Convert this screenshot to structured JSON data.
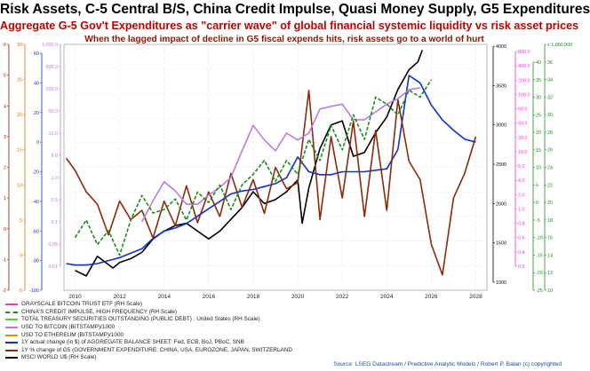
{
  "title": "Risk Assets, C-5 Central B/S, China Credit Impulse, Quasi Money Supply, G5 Expenditures",
  "subtitle1": "Aggregate G-5 Gov't Expenditures as \"carrier wave\" of global financial systemic liquidity vs risk asset prices",
  "subtitle2": "When the lagged impact of decline in G5 fiscal expends hits, risk assets go to a world of hurt",
  "source": "Source: LSEG Datastream / Predictive Analytic Models / Robert P. Balan (c) copyrighted",
  "legend": [
    {
      "label": "GRAYSCALE BITCOIN TRUST ETF (RH Scale)",
      "color": "#ff33cc",
      "dash": false
    },
    {
      "label": "CHINA'S CREDIT IMPULSE, HIGH FREQUENCY (RH Scale)",
      "color": "#1c8a1c",
      "dash": true
    },
    {
      "label": "TOTAL TREASURY SECURITIES OUTSTANDING (PUBLIC DEBT) : United States (RH Scale)",
      "color": "#55cc33",
      "dash": false
    },
    {
      "label": "USD TO BITCOIN (BITSTAMP)/1000",
      "color": "#b57edc",
      "dash": false
    },
    {
      "label": "USD TO ETHEREUM (BITSTAMP)/1000",
      "color": "#e08a1e",
      "dash": false
    },
    {
      "label": "1Y actual change (in $) of AGGREGATE BALANCE SHEET: Fed, ECB, BoJ, PBoC, SNB",
      "color": "#1030d0",
      "dash": false
    },
    {
      "label": "1Y % change of G5 (GOVERNMENT EXPENDITURE: CHINA, USA, EUROZONE, JAPAN, SWITZERLAND",
      "color": "#8b2a0a",
      "dash": false
    },
    {
      "label": "MSCI WORLD U$ (RH Scale)",
      "color": "#000000",
      "dash": false
    }
  ],
  "chart_data": {
    "type": "line",
    "x_ticks": [
      "2010",
      "2012",
      "2014",
      "2016",
      "2018",
      "2020",
      "2022",
      "2024",
      "2026",
      "2028"
    ],
    "xlim": [
      2009.5,
      2028.5
    ],
    "axes": {
      "left1": {
        "color": "#8b1a00",
        "ticks": [
          "6",
          "5",
          "4",
          "3",
          "2",
          "1",
          "0",
          "-1",
          "-2"
        ]
      },
      "left2": {
        "color": "#e07000",
        "ticks": [
          "30",
          "25",
          "20",
          "15",
          "10",
          "5",
          "0",
          "-5"
        ]
      },
      "left3": {
        "color": "#1030d0",
        "ticks": [
          "60",
          "40",
          "20",
          "0",
          "-20",
          "-40",
          "-60",
          "-80",
          "-100"
        ]
      },
      "left4": {
        "color": "#b57edc",
        "ticks": [
          "1,000.0",
          "500.0",
          "100.0",
          "50.0",
          "10.0",
          "5.0",
          "1.0",
          "0.5",
          "0.1",
          "0.05",
          "0.01"
        ]
      },
      "right1": {
        "color": "#000000",
        "ticks": [
          "4000",
          "3500",
          "3000",
          "2500",
          "2000",
          "1500",
          "1000"
        ]
      },
      "right2": {
        "color": "#ff33cc",
        "ticks": [
          "800.0",
          "400.0",
          "200.0",
          "100.0",
          "60.0",
          "40.0",
          "20.0",
          "10.0",
          "6.0",
          "4.0",
          "2.0",
          "1.0",
          "0.8",
          "0.6",
          "0.4",
          "0.2"
        ]
      },
      "right3": {
        "color": "#1c8a1c",
        "ticks": [
          "40",
          "35",
          "30",
          "25",
          "20",
          "15",
          "10",
          "5",
          "0",
          "-5",
          "-10",
          "-15",
          "-20",
          "-25"
        ]
      },
      "right4": {
        "color": "#1c8a1c",
        "ticks": [
          "x 1,000,000",
          "36",
          "34",
          "32",
          "30",
          "28",
          "26",
          "24",
          "22",
          "20",
          "18",
          "16",
          "14",
          "12",
          "10"
        ]
      }
    },
    "series": [
      {
        "name": "MSCI WORLD U$ (RH Scale)",
        "axis": "right1",
        "color": "#000000",
        "x": [
          2010,
          2010.5,
          2011,
          2011.7,
          2012,
          2012.5,
          2013,
          2013.5,
          2014,
          2014.5,
          2015,
          2015.5,
          2016,
          2016.5,
          2017,
          2017.5,
          2018,
          2018.5,
          2019,
          2019.5,
          2020,
          2020.2,
          2020.5,
          2021,
          2021.5,
          2022,
          2022.5,
          2023,
          2023.5,
          2024,
          2024.5,
          2025,
          2025.4,
          2025.6
        ],
        "y": [
          1150,
          1080,
          1330,
          1180,
          1250,
          1300,
          1380,
          1550,
          1650,
          1720,
          1750,
          1650,
          1550,
          1650,
          1800,
          1950,
          2150,
          2000,
          2050,
          2150,
          2300,
          1750,
          2200,
          2700,
          3000,
          3050,
          2600,
          2650,
          2900,
          3100,
          3450,
          3700,
          3800,
          3950
        ]
      },
      {
        "name": "1Y actual change (in $) of AGGREGATE BALANCE SHEET: Fed, ECB, BoJ, PBoC, SNB",
        "axis": "left3",
        "color": "#1030d0",
        "x": [
          2009.6,
          2010,
          2010.5,
          2011,
          2011.5,
          2012,
          2012.5,
          2013,
          2013.5,
          2014,
          2014.5,
          2015,
          2015.5,
          2016,
          2016.5,
          2017,
          2017.5,
          2018,
          2018.5,
          2019,
          2019.5,
          2020,
          2020.5,
          2021,
          2021.5,
          2022,
          2022.5,
          2023,
          2023.5,
          2024,
          2024.5,
          2025,
          2025.5,
          2026,
          2026.5,
          2027,
          2027.5,
          2028
        ],
        "y": [
          -82,
          -83,
          -83,
          -82,
          -80,
          -78,
          -75,
          -72,
          -65,
          -60,
          -58,
          -55,
          -50,
          -45,
          -40,
          -35,
          -33,
          -32,
          -30,
          -28,
          -24,
          -10,
          -20,
          -22,
          -22,
          -20,
          -20,
          -20,
          -19,
          -18,
          -5,
          45,
          40,
          25,
          15,
          8,
          2,
          0
        ]
      },
      {
        "name": "1Y % change of G5 (GOVERNMENT EXPENDITURE: CHINA, USA, EUROZONE, JAPAN, SWITZERLAND",
        "axis": "left1",
        "color": "#8b2a0a",
        "x": [
          2009.6,
          2010,
          2010.5,
          2011,
          2011.5,
          2012,
          2012.5,
          2013,
          2013.5,
          2014,
          2014.5,
          2015,
          2015.5,
          2016,
          2016.5,
          2017,
          2017.5,
          2018,
          2018.5,
          2019,
          2019.5,
          2020,
          2020.5,
          2021,
          2021.5,
          2022,
          2022.5,
          2023,
          2023.5,
          2024,
          2024.5,
          2025,
          2025.5,
          2026,
          2026.5,
          2027,
          2027.5,
          2028
        ],
        "y": [
          2.3,
          1.9,
          1.2,
          0.8,
          -0.2,
          0.9,
          0.3,
          0.6,
          -0.3,
          0.9,
          0.1,
          1.4,
          0.2,
          1.2,
          0.4,
          1.8,
          0.7,
          1.6,
          0.5,
          2.0,
          1.3,
          1.5,
          4.5,
          0.3,
          3.0,
          1.0,
          3.5,
          0.4,
          3.2,
          0.6,
          4.2,
          2.2,
          1.6,
          -0.5,
          -1.5,
          1.0,
          1.8,
          3.0
        ]
      },
      {
        "name": "USD TO BITCOIN (BITSTAMP)/1000",
        "axis": "left4",
        "color": "#b57edc",
        "x": [
          2013,
          2013.5,
          2014,
          2014.5,
          2015,
          2015.5,
          2016,
          2016.5,
          2017,
          2017.5,
          2018,
          2018.5,
          2019,
          2019.5,
          2020,
          2020.5,
          2021,
          2021.5,
          2022,
          2022.5,
          2023,
          2023.5,
          2024,
          2024.5,
          2025,
          2025.5
        ],
        "y": [
          0.1,
          0.3,
          0.8,
          0.5,
          0.25,
          0.25,
          0.4,
          0.6,
          1.0,
          4.0,
          15.0,
          7.0,
          4.0,
          10.0,
          7.0,
          10.0,
          35.0,
          40.0,
          45.0,
          20.0,
          20.0,
          30.0,
          45.0,
          60.0,
          95.0,
          105.0
        ]
      },
      {
        "name": "CHINA'S CREDIT IMPULSE, HIGH FREQUENCY (RH Scale)",
        "axis": "right3",
        "color": "#1c8a1c",
        "x": [
          2010,
          2010.5,
          2011,
          2011.5,
          2012,
          2012.5,
          2013,
          2013.5,
          2014,
          2014.5,
          2015,
          2015.5,
          2016,
          2016.5,
          2017,
          2017.5,
          2018,
          2018.5,
          2019,
          2019.5,
          2020,
          2020.5,
          2021,
          2021.5,
          2022,
          2022.5,
          2023,
          2023.5,
          2024,
          2024.5,
          2025,
          2025.5,
          2026
        ],
        "y": [
          -10,
          -5,
          -12,
          -8,
          -15,
          -5,
          2,
          -3,
          -2,
          1,
          -5,
          3,
          0,
          5,
          -2,
          5,
          8,
          12,
          6,
          12,
          8,
          18,
          12,
          22,
          15,
          25,
          18,
          30,
          28,
          25,
          32,
          30,
          35
        ]
      }
    ]
  }
}
